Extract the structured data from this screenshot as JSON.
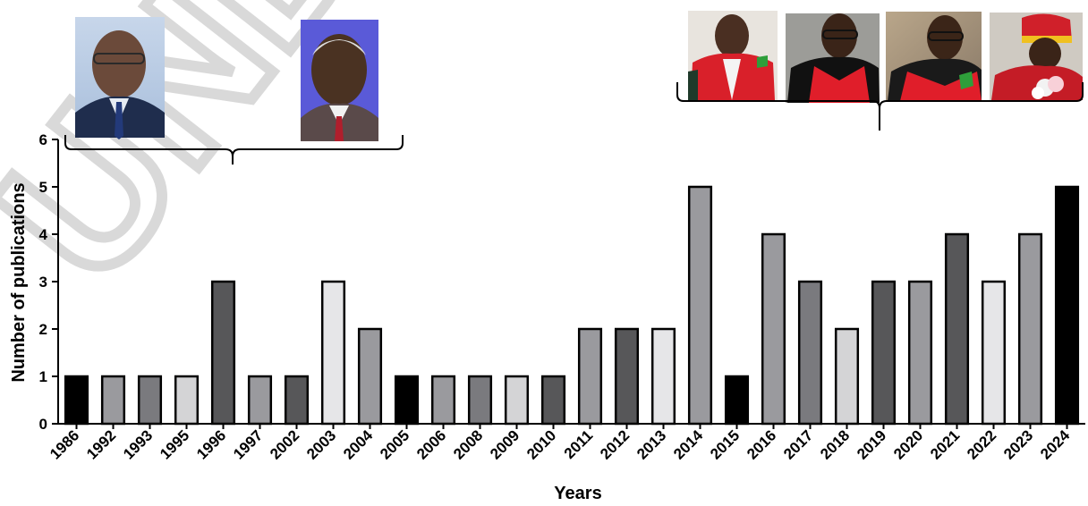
{
  "watermark": {
    "text": "UNDEF"
  },
  "chart_data": {
    "type": "bar",
    "title": "",
    "xlabel": "Years",
    "ylabel": "Number of publications",
    "ylim": [
      0,
      6
    ],
    "yticks": [
      0,
      1,
      2,
      3,
      4,
      5,
      6
    ],
    "grid": false,
    "legend": "none",
    "categories": [
      "1986",
      "1992",
      "1993",
      "1995",
      "1996",
      "1997",
      "2002",
      "2003",
      "2004",
      "2005",
      "2006",
      "2008",
      "2009",
      "2010",
      "2011",
      "2012",
      "2013",
      "2014",
      "2015",
      "2016",
      "2017",
      "2018",
      "2019",
      "2020",
      "2021",
      "2022",
      "2023",
      "2024"
    ],
    "values": [
      1,
      1,
      1,
      1,
      3,
      1,
      1,
      3,
      2,
      1,
      1,
      1,
      1,
      1,
      2,
      2,
      2,
      5,
      1,
      4,
      3,
      2,
      3,
      3,
      4,
      3,
      4,
      5
    ],
    "bar_colors": [
      "#000000",
      "#9a9a9e",
      "#7a7a7e",
      "#d4d4d6",
      "#575759",
      "#9a9a9e",
      "#575759",
      "#e6e6e8",
      "#9a9a9e",
      "#000000",
      "#9a9a9e",
      "#7a7a7e",
      "#d4d4d6",
      "#575759",
      "#9a9a9e",
      "#575759",
      "#e6e6e8",
      "#9a9a9e",
      "#000000",
      "#9a9a9e",
      "#7a7a7e",
      "#d4d4d6",
      "#575759",
      "#9a9a9e",
      "#575759",
      "#e6e6e8",
      "#9a9a9e",
      "#000000"
    ]
  },
  "photos": {
    "left_group": [
      "portrait-man-glasses-blue-suit",
      "portrait-elderly-man-red-tie"
    ],
    "right_group": [
      "portrait-man-red-academic-gown",
      "portrait-man-glasses-red-gown",
      "portrait-man-glasses-red-gown-audience",
      "portrait-man-red-gown-cap-flowers"
    ]
  }
}
